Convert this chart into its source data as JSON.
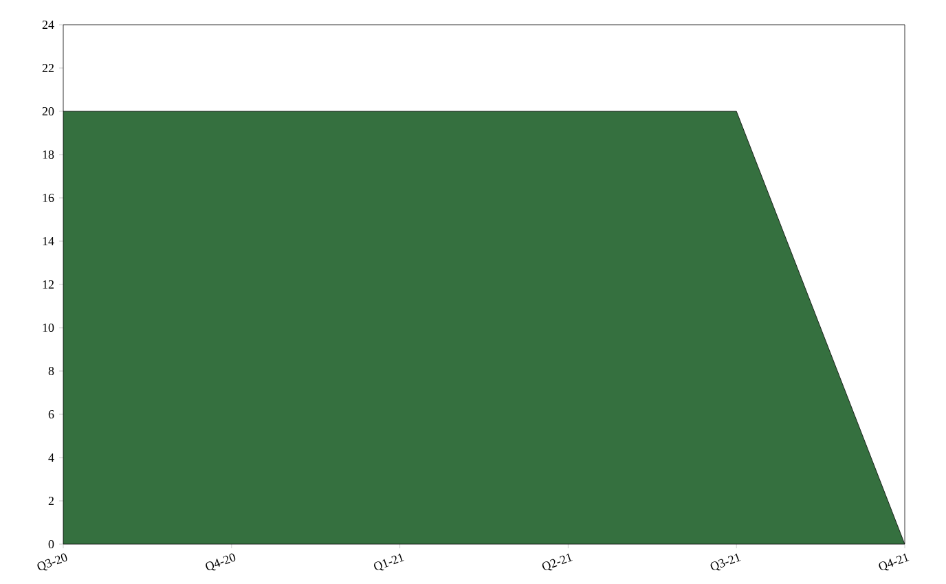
{
  "chart_data": {
    "type": "area",
    "categories": [
      "Q3-20",
      "Q4-20",
      "Q1-21",
      "Q2-21",
      "Q3-21",
      "Q4-21"
    ],
    "values": [
      20,
      20,
      20,
      20,
      20,
      0
    ],
    "color": "#35703f",
    "ylim": [
      0,
      24
    ],
    "yticks": [
      0,
      2,
      4,
      6,
      8,
      10,
      12,
      14,
      16,
      18,
      20,
      22,
      24
    ],
    "grid": false
  }
}
